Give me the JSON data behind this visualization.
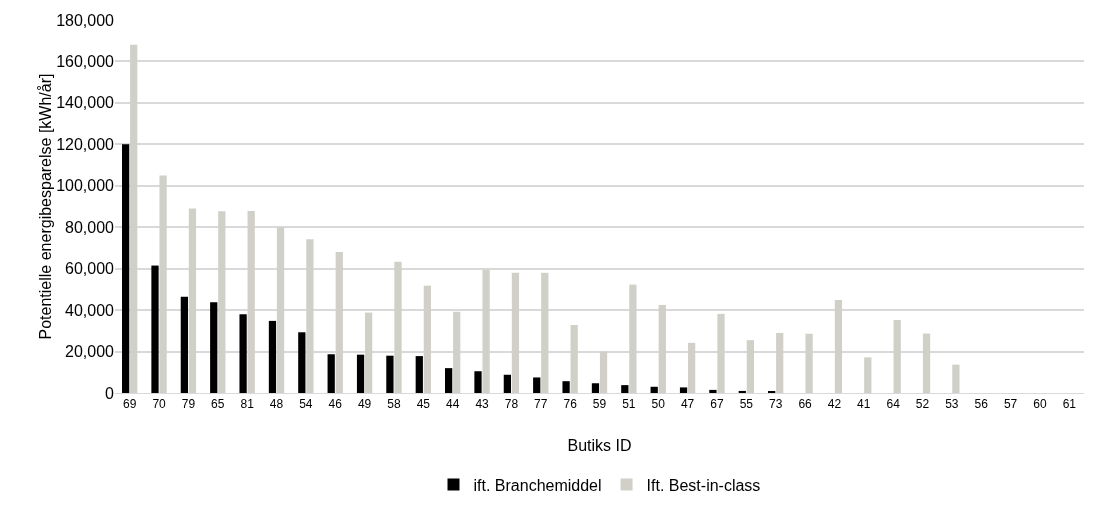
{
  "chart_data": {
    "type": "bar",
    "xlabel": "Butiks ID",
    "ylabel": "Potentielle energibesparelse [kWh/år]",
    "categories": [
      "69",
      "70",
      "79",
      "65",
      "81",
      "48",
      "54",
      "46",
      "49",
      "58",
      "45",
      "44",
      "43",
      "78",
      "77",
      "76",
      "59",
      "51",
      "50",
      "47",
      "67",
      "55",
      "73",
      "66",
      "42",
      "41",
      "64",
      "52",
      "53",
      "56",
      "57",
      "60",
      "61"
    ],
    "series": [
      {
        "name": "ift. Branchemiddel",
        "color": "#000000",
        "values": [
          120000,
          61500,
          46500,
          43800,
          38000,
          34800,
          29300,
          18700,
          18500,
          18000,
          17800,
          12000,
          10500,
          8800,
          7500,
          5700,
          4700,
          3800,
          3000,
          2700,
          1500,
          1000,
          800,
          0,
          0,
          0,
          0,
          0,
          0,
          0,
          0,
          0,
          0
        ]
      },
      {
        "name": "Ift. Best-in-class",
        "color": "#d0d0c8",
        "values": [
          168000,
          105000,
          89000,
          87700,
          87800,
          80000,
          74200,
          68000,
          38800,
          63300,
          51800,
          39200,
          59500,
          58000,
          58000,
          32800,
          20000,
          52300,
          42500,
          24200,
          38200,
          25500,
          29000,
          28600,
          44900,
          17200,
          35200,
          28700,
          13700,
          0,
          0,
          0,
          0
        ]
      }
    ],
    "ylim": [
      0,
      180000
    ],
    "yticks": [
      {
        "value": 0,
        "label": "0"
      },
      {
        "value": 20000,
        "label": "20,000"
      },
      {
        "value": 40000,
        "label": "40,000"
      },
      {
        "value": 60000,
        "label": "60,000"
      },
      {
        "value": 80000,
        "label": "80,000"
      },
      {
        "value": 100000,
        "label": "100,000"
      },
      {
        "value": 120000,
        "label": "120,000"
      },
      {
        "value": 140000,
        "label": "140,000"
      },
      {
        "value": 160000,
        "label": "160,000"
      },
      {
        "value": 180000,
        "label": "180,000"
      }
    ],
    "grid": "y",
    "legend": "bottom"
  }
}
